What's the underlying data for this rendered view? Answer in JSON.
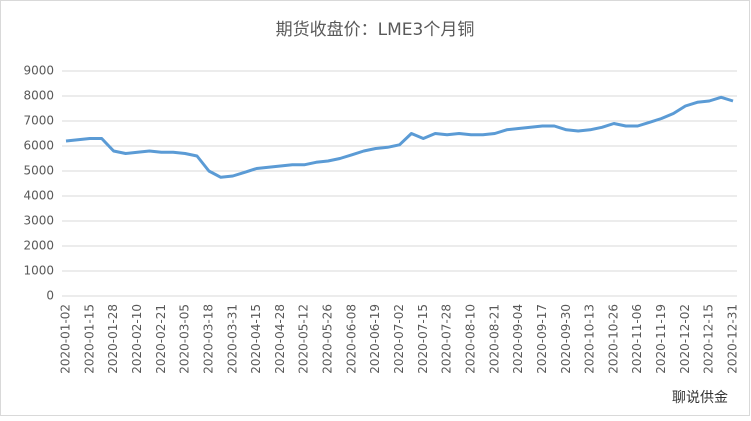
{
  "chart_data": {
    "type": "line",
    "title": "期货收盘价：LME3个月铜",
    "categories": [
      "2020-01-02",
      null,
      "2020-01-15",
      null,
      "2020-01-28",
      null,
      "2020-02-10",
      null,
      "2020-02-21",
      null,
      "2020-03-05",
      null,
      "2020-03-18",
      null,
      "2020-03-31",
      null,
      "2020-04-15",
      null,
      "2020-04-28",
      null,
      "2020-05-12",
      null,
      "2020-05-26",
      null,
      "2020-06-08",
      null,
      "2020-06-19",
      null,
      "2020-07-02",
      null,
      "2020-07-15",
      null,
      "2020-07-28",
      null,
      "2020-08-10",
      null,
      "2020-08-21",
      null,
      "2020-09-04",
      null,
      "2020-09-17",
      null,
      "2020-09-30",
      null,
      "2020-10-13",
      null,
      "2020-10-26",
      null,
      "2020-11-06",
      null,
      "2020-11-19",
      null,
      "2020-12-02",
      null,
      "2020-12-15",
      null,
      "2020-12-31"
    ],
    "series": [
      {
        "name": "期货收盘价：LME3个月铜",
        "color": "#5b9bd5",
        "values": [
          6200,
          6250,
          6300,
          6300,
          5800,
          5700,
          5750,
          5800,
          5750,
          5750,
          5700,
          5600,
          5000,
          4750,
          4800,
          4950,
          5100,
          5150,
          5200,
          5250,
          5250,
          5350,
          5400,
          5500,
          5650,
          5800,
          5900,
          5950,
          6050,
          6500,
          6300,
          6500,
          6450,
          6500,
          6450,
          6450,
          6500,
          6650,
          6700,
          6750,
          6800,
          6800,
          6650,
          6600,
          6650,
          6750,
          6900,
          6800,
          6800,
          6950,
          7100,
          7300,
          7600,
          7750,
          7800,
          7950,
          7800
        ]
      }
    ],
    "ylim": [
      0,
      9000
    ],
    "yticks": [
      0,
      1000,
      2000,
      3000,
      4000,
      5000,
      6000,
      7000,
      8000,
      9000
    ],
    "grid": true,
    "watermark": "聊说供金"
  }
}
